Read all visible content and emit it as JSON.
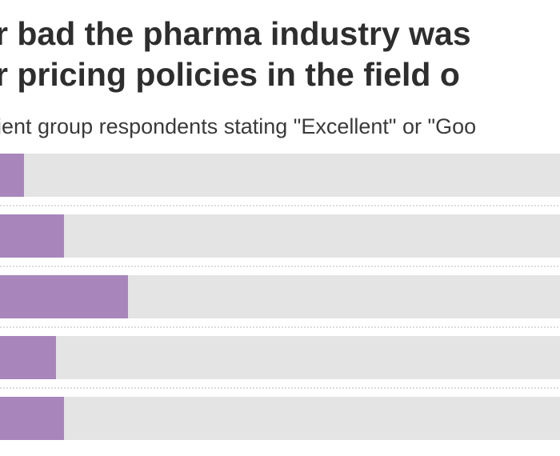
{
  "chart_data": {
    "type": "bar",
    "orientation": "horizontal",
    "title_lines": [
      "r bad the pharma industry was",
      "r pricing policies in the field o"
    ],
    "subtitle": "ient group respondents stating \"Excellent\" or \"Goo",
    "categories": [
      null,
      null,
      null,
      null,
      null
    ],
    "values": [
      13,
      18,
      26,
      17,
      18
    ],
    "xlim": [
      0,
      100
    ],
    "color": "#a886bc",
    "track_color": "#e4e4e4"
  }
}
